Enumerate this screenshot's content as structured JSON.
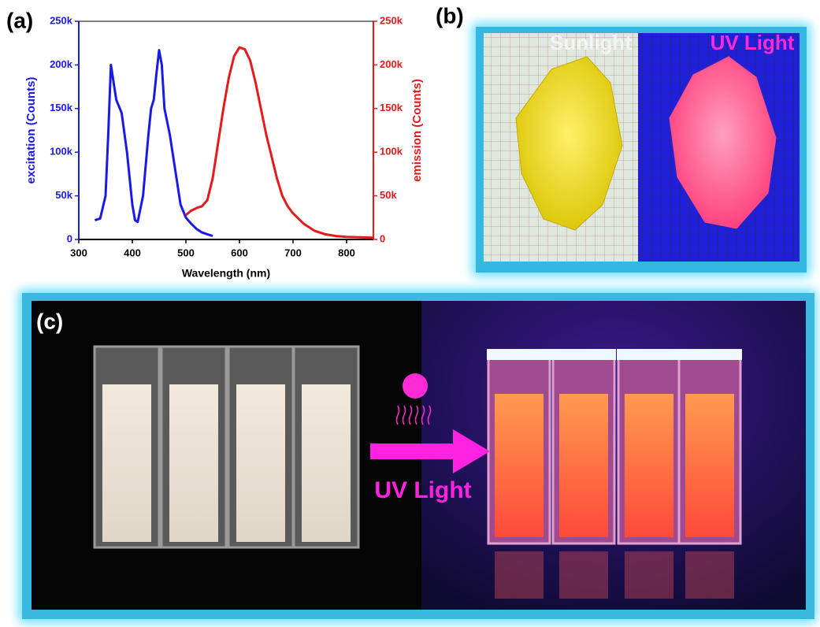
{
  "chart_data": {
    "type": "line",
    "xlabel": "Wavelength (nm)",
    "ylabel": "excitation (Counts)",
    "y2label": "emission (Counts)",
    "xlim": [
      300,
      850
    ],
    "xticks": [
      300,
      400,
      500,
      600,
      700,
      800
    ],
    "ylim": [
      0,
      250000
    ],
    "yticks": [
      0,
      {
        "value": 50000,
        "label": "50k"
      },
      {
        "value": 100000,
        "label": "100k"
      },
      {
        "value": 150000,
        "label": "150k"
      },
      {
        "value": 200000,
        "label": "200k"
      },
      {
        "value": 250000,
        "label": "250k"
      }
    ],
    "y2lim": [
      0,
      250000
    ],
    "y2ticks": [
      0,
      {
        "value": 50000,
        "label": "50k"
      },
      {
        "value": 100000,
        "label": "100k"
      },
      {
        "value": 150000,
        "label": "150k"
      },
      {
        "value": 200000,
        "label": "200k"
      },
      {
        "value": 250000,
        "label": "250k"
      }
    ],
    "ycolor": "#1a1ae6",
    "y2color": "#e61a1a",
    "series": [
      {
        "color": "#1a1ae6",
        "axis": "y",
        "x": [
          330,
          340,
          350,
          355,
          360,
          365,
          370,
          380,
          390,
          400,
          405,
          410,
          420,
          430,
          435,
          440,
          445,
          450,
          455,
          460,
          470,
          480,
          490,
          500,
          510,
          520,
          530,
          540,
          550
        ],
        "values": [
          22000,
          24000,
          50000,
          120000,
          200000,
          180000,
          160000,
          145000,
          100000,
          40000,
          22000,
          20000,
          50000,
          120000,
          150000,
          160000,
          190000,
          217000,
          200000,
          150000,
          120000,
          80000,
          40000,
          25000,
          18000,
          12000,
          8000,
          6000,
          4000
        ]
      },
      {
        "color": "#e61a1a",
        "axis": "y2",
        "x": [
          500,
          510,
          520,
          530,
          540,
          550,
          560,
          570,
          580,
          590,
          600,
          610,
          620,
          630,
          640,
          650,
          660,
          670,
          680,
          690,
          700,
          720,
          740,
          760,
          780,
          800,
          850
        ],
        "values": [
          28000,
          33000,
          36000,
          38000,
          45000,
          70000,
          110000,
          150000,
          185000,
          210000,
          220000,
          218000,
          205000,
          180000,
          150000,
          120000,
          95000,
          70000,
          50000,
          38000,
          30000,
          18000,
          10000,
          6000,
          4000,
          3000,
          2000
        ]
      }
    ]
  },
  "panels": {
    "a": "(a)",
    "b": "(b)",
    "c": "(c)"
  },
  "photo_b": {
    "left": "Sunlight",
    "right": "UV Light"
  },
  "photo_c": {
    "arrow_label": "UV Light"
  }
}
